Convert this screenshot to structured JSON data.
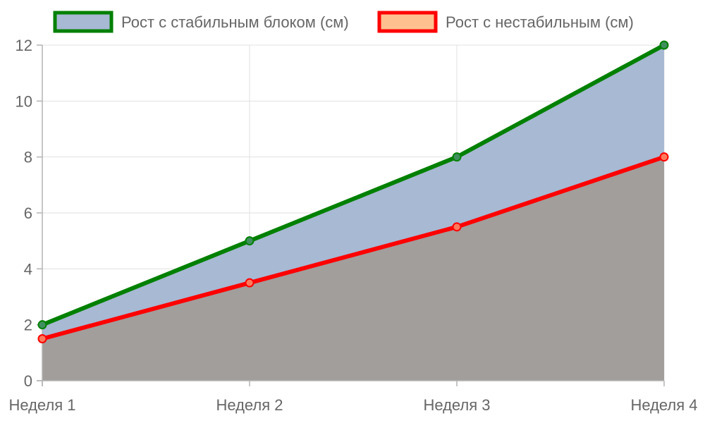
{
  "chart_data": {
    "type": "area",
    "title": "",
    "xlabel": "",
    "ylabel": "",
    "categories": [
      "Неделя 1",
      "Неделя 2",
      "Неделя 3",
      "Неделя 4"
    ],
    "series": [
      {
        "name": "Рост с стабильным блоком (см)",
        "values": [
          2,
          5,
          8,
          12
        ],
        "line_color": "#008000",
        "fill_color": "#A7B9D3"
      },
      {
        "name": "Рост с нестабильным (см)",
        "values": [
          1.5,
          3.5,
          5.5,
          8
        ],
        "line_color": "#FF0000",
        "fill_color": "#FFC08F"
      }
    ],
    "overlap_fill_color": "#A29E9C",
    "ylim": [
      0,
      12
    ],
    "yticks": [
      0,
      2,
      4,
      6,
      8,
      10,
      12
    ],
    "grid": true,
    "legend_position": "top",
    "stacked": false,
    "filled": true
  }
}
